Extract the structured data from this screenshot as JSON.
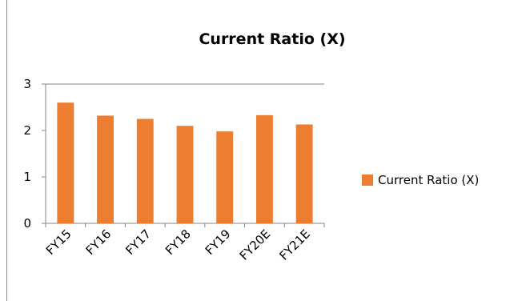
{
  "chart_data": {
    "type": "bar",
    "title": "Current Ratio (X)",
    "categories": [
      "FY15",
      "FY16",
      "FY17",
      "FY18",
      "FY19",
      "FY20E",
      "FY21E"
    ],
    "series": [
      {
        "name": "Current Ratio (X)",
        "values": [
          2.6,
          2.32,
          2.25,
          2.1,
          1.98,
          2.33,
          2.13
        ]
      }
    ],
    "xlabel": "",
    "ylabel": "",
    "ylim": [
      0,
      3
    ],
    "yticks": [
      "0",
      "1",
      "2",
      "3"
    ],
    "grid": false,
    "legend": "right",
    "colors": {
      "bar": "#ED7D31",
      "axis": "#868686"
    }
  }
}
